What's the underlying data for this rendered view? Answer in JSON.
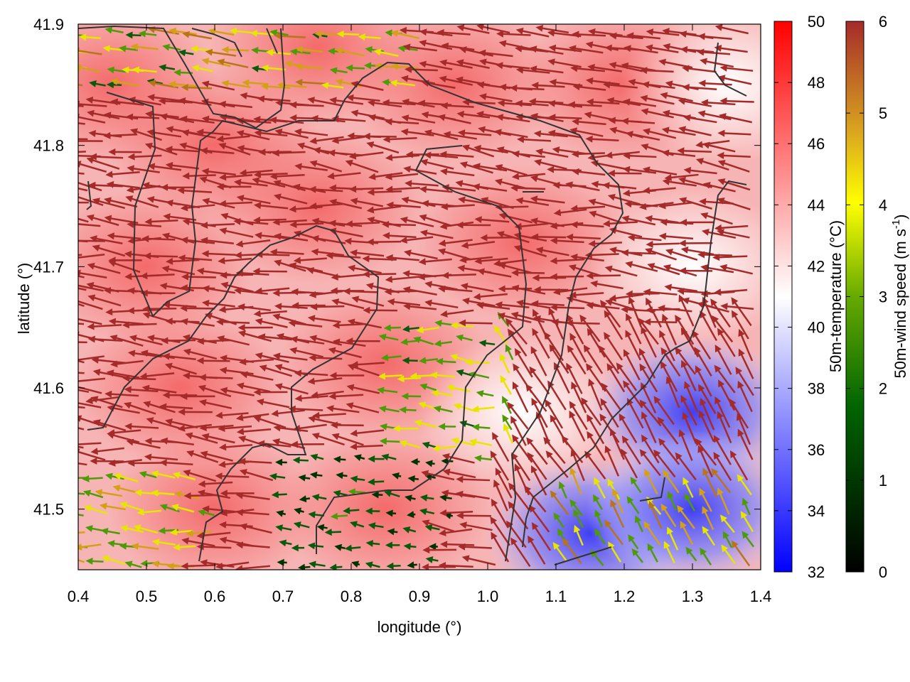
{
  "chart_data": {
    "type": "heatmap",
    "subtype": "wind-vector field over temperature map",
    "title": "",
    "xlabel": "longitude (°)",
    "ylabel": "latitude (°)",
    "xlim": [
      0.4,
      1.4
    ],
    "ylim": [
      41.45,
      41.9
    ],
    "x_ticks": [
      0.4,
      0.5,
      0.6,
      0.7,
      0.8,
      0.9,
      1.0,
      1.1,
      1.2,
      1.3,
      1.4
    ],
    "y_ticks": [
      41.5,
      41.6,
      41.7,
      41.8,
      41.9
    ],
    "x_tick_labels": [
      "0.4",
      "0.5",
      "0.6",
      "0.7",
      "0.8",
      "0.9",
      "1.0",
      "1.1",
      "1.2",
      "1.3",
      "1.4"
    ],
    "y_tick_labels": [
      "41.5",
      "41.6",
      "41.7",
      "41.8",
      "41.9"
    ],
    "colorbars": [
      {
        "label": "50m-temperature (°C)",
        "range": [
          32,
          50
        ],
        "ticks": [
          32,
          34,
          36,
          38,
          40,
          42,
          44,
          46,
          48,
          50
        ],
        "tick_labels": [
          "32",
          "34",
          "36",
          "38",
          "40",
          "42",
          "44",
          "46",
          "48",
          "50"
        ],
        "colors": [
          "#0000ff",
          "#ffffff",
          "#ff0000"
        ]
      },
      {
        "label_main": "50m-wind speed (m s",
        "label_sup": "-1",
        "label_end": ")",
        "range": [
          0,
          6
        ],
        "ticks": [
          0,
          1,
          2,
          3,
          4,
          5,
          6
        ],
        "tick_labels": [
          "0",
          "1",
          "2",
          "3",
          "4",
          "5",
          "6"
        ],
        "colors": [
          "#000000",
          "#006400",
          "#66aa00",
          "#ffff00",
          "#daa520",
          "#b8860b",
          "#a52a2a"
        ]
      }
    ],
    "temperature_field_sample": [
      {
        "lon": 0.45,
        "lat": 41.85,
        "t": 45
      },
      {
        "lon": 0.6,
        "lat": 41.8,
        "t": 45
      },
      {
        "lon": 0.75,
        "lat": 41.88,
        "t": 44
      },
      {
        "lon": 0.95,
        "lat": 41.85,
        "t": 44
      },
      {
        "lon": 1.2,
        "lat": 41.85,
        "t": 43
      },
      {
        "lon": 1.35,
        "lat": 41.85,
        "t": 42
      },
      {
        "lon": 0.5,
        "lat": 41.7,
        "t": 45
      },
      {
        "lon": 0.75,
        "lat": 41.75,
        "t": 44
      },
      {
        "lon": 1.05,
        "lat": 41.72,
        "t": 43
      },
      {
        "lon": 1.3,
        "lat": 41.7,
        "t": 40
      },
      {
        "lon": 0.55,
        "lat": 41.6,
        "t": 45
      },
      {
        "lon": 0.85,
        "lat": 41.62,
        "t": 44
      },
      {
        "lon": 1.05,
        "lat": 41.58,
        "t": 42
      },
      {
        "lon": 1.3,
        "lat": 41.58,
        "t": 37
      },
      {
        "lon": 0.6,
        "lat": 41.5,
        "t": 45
      },
      {
        "lon": 0.85,
        "lat": 41.5,
        "t": 43
      },
      {
        "lon": 1.15,
        "lat": 41.48,
        "t": 36
      },
      {
        "lon": 1.3,
        "lat": 41.5,
        "t": 34
      }
    ]
  }
}
